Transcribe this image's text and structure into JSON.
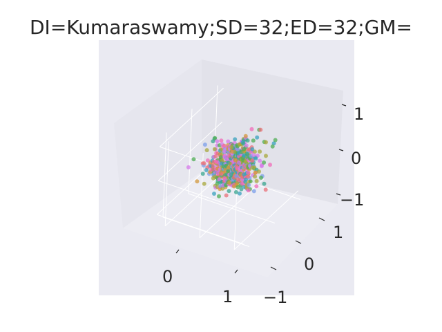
{
  "chart_data": {
    "type": "scatter",
    "projection": "3d",
    "title": "DI=Kumaraswamy;SD=32;ED=32;GM=",
    "xlabel": "",
    "ylabel": "",
    "zlabel": "",
    "x_ticks": [
      "0",
      "1"
    ],
    "y_ticks": [
      "−1",
      "0",
      "1"
    ],
    "z_ticks": [
      "−1",
      "0",
      "1"
    ],
    "xlim": [
      -1.3,
      1.3
    ],
    "ylim": [
      -1.3,
      1.3
    ],
    "zlim": [
      -1.3,
      1.3
    ],
    "grid": true,
    "legend": "none",
    "point_count": 700,
    "spread_std": 0.28,
    "palette": [
      "#e9727a",
      "#d39a3d",
      "#a8a83e",
      "#4fae54",
      "#3aa58f",
      "#3aa2bd",
      "#7c9fe9",
      "#d67ae9",
      "#f06bb8"
    ],
    "colors": {
      "axes_background": "#eaeaf2",
      "pane_left": "#e6e6ee",
      "pane_right": "#e2e2ea",
      "floor": "#ececf3",
      "grid": "#ffffff",
      "text": "#262626"
    }
  }
}
